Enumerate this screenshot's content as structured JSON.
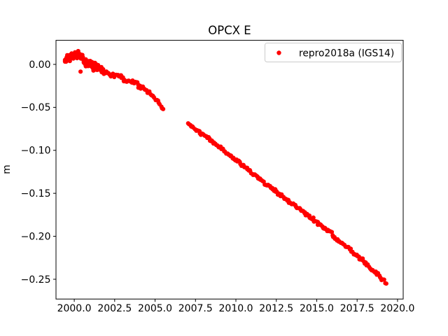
{
  "figure": {
    "title": "OPCX E",
    "background": "#ffffff"
  },
  "chart_data": {
    "type": "scatter",
    "title": "OPCX E",
    "xlabel": "",
    "ylabel": "m",
    "grid": false,
    "xlim": [
      1998.87,
      2020.35
    ],
    "ylim": [
      -0.273,
      0.028
    ],
    "x_ticks": [
      {
        "v": 2000.0,
        "label": "2000.0"
      },
      {
        "v": 2002.5,
        "label": "2002.5"
      },
      {
        "v": 2005.0,
        "label": "2005.0"
      },
      {
        "v": 2007.5,
        "label": "2007.5"
      },
      {
        "v": 2010.0,
        "label": "2010.0"
      },
      {
        "v": 2012.5,
        "label": "2012.5"
      },
      {
        "v": 2015.0,
        "label": "2015.0"
      },
      {
        "v": 2017.5,
        "label": "2017.5"
      },
      {
        "v": 2020.0,
        "label": "2020.0"
      }
    ],
    "y_ticks": [
      {
        "v": 0.0,
        "label": "0.00"
      },
      {
        "v": -0.05,
        "label": "−0.05"
      },
      {
        "v": -0.1,
        "label": "−0.10"
      },
      {
        "v": -0.15,
        "label": "−0.15"
      },
      {
        "v": -0.2,
        "label": "−0.20"
      },
      {
        "v": -0.25,
        "label": "−0.25"
      }
    ],
    "legend": {
      "position": "upper right",
      "border_color": "#cccccc",
      "background": "#ffffff"
    },
    "series": [
      {
        "name": "repro2018a (IGS14)",
        "color": "#ff0000",
        "marker": "dot",
        "marker_radius_px": 3.1,
        "segments": [
          [
            [
              1999.45,
              0.003,
              0.008
            ],
            [
              1999.6,
              0.007,
              0.01
            ],
            [
              1999.75,
              0.009,
              0.011
            ],
            [
              1999.9,
              0.01,
              0.012
            ],
            [
              2000.05,
              0.011,
              0.012
            ],
            [
              2000.2,
              0.011,
              0.011
            ],
            [
              2000.35,
              0.01,
              0.01
            ],
            [
              2000.5,
              0.008,
              0.01
            ],
            [
              2000.65,
              0.004,
              0.01
            ],
            [
              2000.8,
              0.002,
              0.011
            ],
            [
              2001.0,
              0.0,
              0.013
            ],
            [
              2001.2,
              -0.001,
              0.012
            ],
            [
              2001.4,
              -0.003,
              0.01
            ],
            [
              2001.6,
              -0.006,
              0.008
            ],
            [
              2001.8,
              -0.008,
              0.007
            ],
            [
              2002.0,
              -0.009,
              0.006
            ],
            [
              2002.2,
              -0.011,
              0.006
            ],
            [
              2002.4,
              -0.012,
              0.006
            ],
            [
              2002.6,
              -0.012,
              0.006
            ],
            [
              2002.8,
              -0.014,
              0.006
            ],
            [
              2003.0,
              -0.016,
              0.006
            ],
            [
              2003.2,
              -0.018,
              0.006
            ],
            [
              2003.4,
              -0.02,
              0.006
            ],
            [
              2003.6,
              -0.021,
              0.006
            ],
            [
              2003.8,
              -0.023,
              0.006
            ],
            [
              2004.0,
              -0.025,
              0.006
            ],
            [
              2004.3,
              -0.028,
              0.005
            ],
            [
              2004.5,
              -0.03,
              0.005
            ],
            [
              2004.7,
              -0.034,
              0.005
            ],
            [
              2004.9,
              -0.037,
              0.005
            ],
            [
              2005.1,
              -0.041,
              0.005
            ],
            [
              2005.3,
              -0.046,
              0.004
            ],
            [
              2005.5,
              -0.052,
              0.004
            ]
          ],
          [
            [
              2007.05,
              -0.068,
              0.004
            ],
            [
              2007.25,
              -0.072,
              0.004
            ],
            [
              2007.45,
              -0.074,
              0.004
            ],
            [
              2007.65,
              -0.078,
              0.004
            ],
            [
              2007.85,
              -0.081,
              0.004
            ],
            [
              2008.1,
              -0.083,
              0.004
            ],
            [
              2008.35,
              -0.087,
              0.004
            ],
            [
              2008.6,
              -0.091,
              0.004
            ],
            [
              2008.85,
              -0.094,
              0.004
            ],
            [
              2009.1,
              -0.098,
              0.004
            ],
            [
              2009.35,
              -0.102,
              0.004
            ],
            [
              2009.6,
              -0.106,
              0.004
            ],
            [
              2009.85,
              -0.109,
              0.004
            ],
            [
              2010.1,
              -0.113,
              0.004
            ],
            [
              2010.35,
              -0.116,
              0.004
            ],
            [
              2010.6,
              -0.12,
              0.004
            ],
            [
              2010.85,
              -0.124,
              0.004
            ],
            [
              2011.1,
              -0.128,
              0.004
            ],
            [
              2011.35,
              -0.131,
              0.004
            ],
            [
              2011.6,
              -0.135,
              0.004
            ],
            [
              2011.85,
              -0.139,
              0.004
            ],
            [
              2012.1,
              -0.143,
              0.004
            ],
            [
              2012.35,
              -0.146,
              0.004
            ],
            [
              2012.6,
              -0.15,
              0.004
            ],
            [
              2012.85,
              -0.153,
              0.004
            ],
            [
              2013.1,
              -0.157,
              0.004
            ],
            [
              2013.35,
              -0.16,
              0.004
            ],
            [
              2013.6,
              -0.163,
              0.004
            ],
            [
              2013.85,
              -0.167,
              0.004
            ],
            [
              2014.1,
              -0.171,
              0.004
            ],
            [
              2014.35,
              -0.175,
              0.004
            ],
            [
              2014.6,
              -0.178,
              0.004
            ],
            [
              2014.85,
              -0.181,
              0.004
            ],
            [
              2015.1,
              -0.185,
              0.004
            ],
            [
              2015.35,
              -0.188,
              0.004
            ],
            [
              2015.6,
              -0.191,
              0.004
            ],
            [
              2015.85,
              -0.195,
              0.004
            ],
            [
              2016.1,
              -0.201,
              0.004
            ],
            [
              2016.35,
              -0.205,
              0.004
            ],
            [
              2016.6,
              -0.208,
              0.004
            ],
            [
              2016.85,
              -0.212,
              0.004
            ],
            [
              2017.1,
              -0.216,
              0.004
            ],
            [
              2017.35,
              -0.22,
              0.004
            ],
            [
              2017.6,
              -0.224,
              0.004
            ],
            [
              2017.85,
              -0.228,
              0.004
            ],
            [
              2018.1,
              -0.233,
              0.004
            ],
            [
              2018.35,
              -0.237,
              0.004
            ],
            [
              2018.6,
              -0.241,
              0.004
            ],
            [
              2018.85,
              -0.246,
              0.004
            ],
            [
              2019.1,
              -0.251,
              0.004
            ],
            [
              2019.3,
              -0.255,
              0.004
            ]
          ]
        ],
        "outliers": [
          [
            2000.39,
            -0.0084
          ]
        ]
      }
    ]
  }
}
